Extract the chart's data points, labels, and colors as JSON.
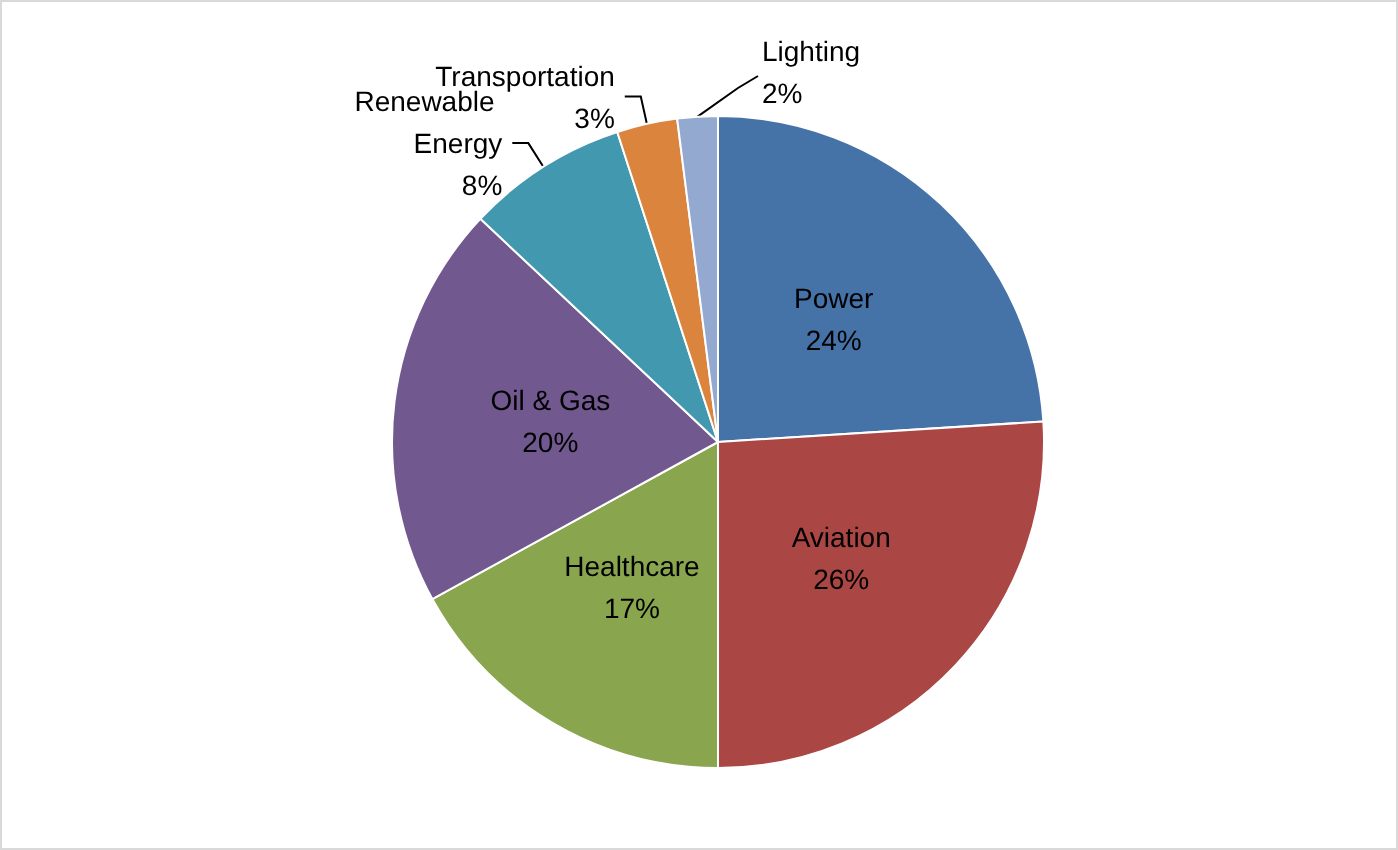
{
  "chart_data": {
    "type": "pie",
    "categories": [
      "Power",
      "Aviation",
      "Healthcare",
      "Oil & Gas",
      "Renewable Energy",
      "Transportation",
      "Lighting"
    ],
    "values": [
      24,
      26,
      17,
      20,
      8,
      3,
      2
    ],
    "value_labels": [
      "24%",
      "26%",
      "17%",
      "20%",
      "8%",
      "3%",
      "2%"
    ],
    "colors": [
      "#4572a7",
      "#aa4643",
      "#89a54e",
      "#71588f",
      "#4198af",
      "#db843d",
      "#93a9cf"
    ],
    "legend": false
  }
}
